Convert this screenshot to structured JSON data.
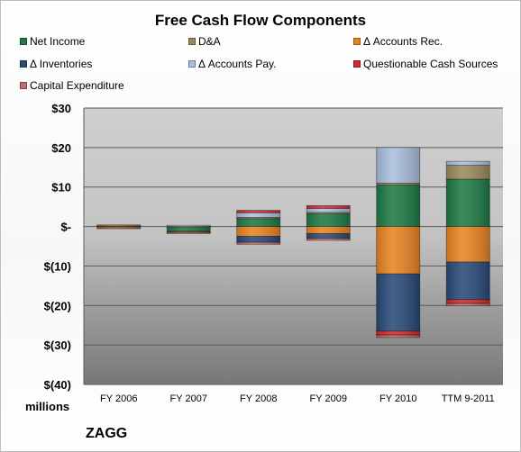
{
  "chart_data": {
    "type": "bar",
    "title": "Free Cash Flow Components",
    "stacked": true,
    "categories": [
      "FY 2006",
      "FY 2007",
      "FY 2008",
      "FY 2009",
      "FY 2010",
      "TTM 9-2011"
    ],
    "ylim": [
      -40,
      30
    ],
    "yticks": [
      30,
      20,
      10,
      0,
      -10,
      -20,
      -30,
      -40
    ],
    "ytick_labels": [
      "$30",
      "$20",
      "$10",
      "$-",
      "$(10)",
      "$(20)",
      "$(30)",
      "$(40)"
    ],
    "grid": true,
    "legend_position": "top",
    "series": [
      {
        "name": "Net Income",
        "color": "#1e7a45",
        "values": [
          0.3,
          -1.2,
          2.0,
          3.2,
          10.5,
          12.0
        ]
      },
      {
        "name": "D&A",
        "color": "#9a8a5c",
        "values": [
          0.1,
          0.1,
          0.3,
          0.4,
          0.5,
          3.5
        ]
      },
      {
        "name": "Δ Accounts Rec.",
        "color": "#e88422",
        "values": [
          -0.3,
          -0.2,
          -2.5,
          -1.8,
          -12.0,
          -9.0
        ]
      },
      {
        "name": "Δ Inventories",
        "color": "#294a78",
        "values": [
          0.0,
          -0.1,
          -1.5,
          -1.2,
          -14.5,
          -9.5
        ]
      },
      {
        "name": "Δ Accounts Pay.",
        "color": "#a9bfdc",
        "values": [
          0.0,
          0.2,
          1.2,
          1.0,
          9.0,
          1.0
        ]
      },
      {
        "name": "Questionable Cash Sources",
        "color": "#d42a2a",
        "values": [
          0.0,
          0.0,
          0.6,
          0.7,
          -1.0,
          -1.0
        ]
      },
      {
        "name": "Capital Expenditure",
        "color": "#c06a6a",
        "values": [
          -0.2,
          -0.2,
          -0.5,
          -0.5,
          -0.6,
          -0.6
        ]
      }
    ]
  },
  "unit_label": "millions",
  "company_label": "ZAGG"
}
